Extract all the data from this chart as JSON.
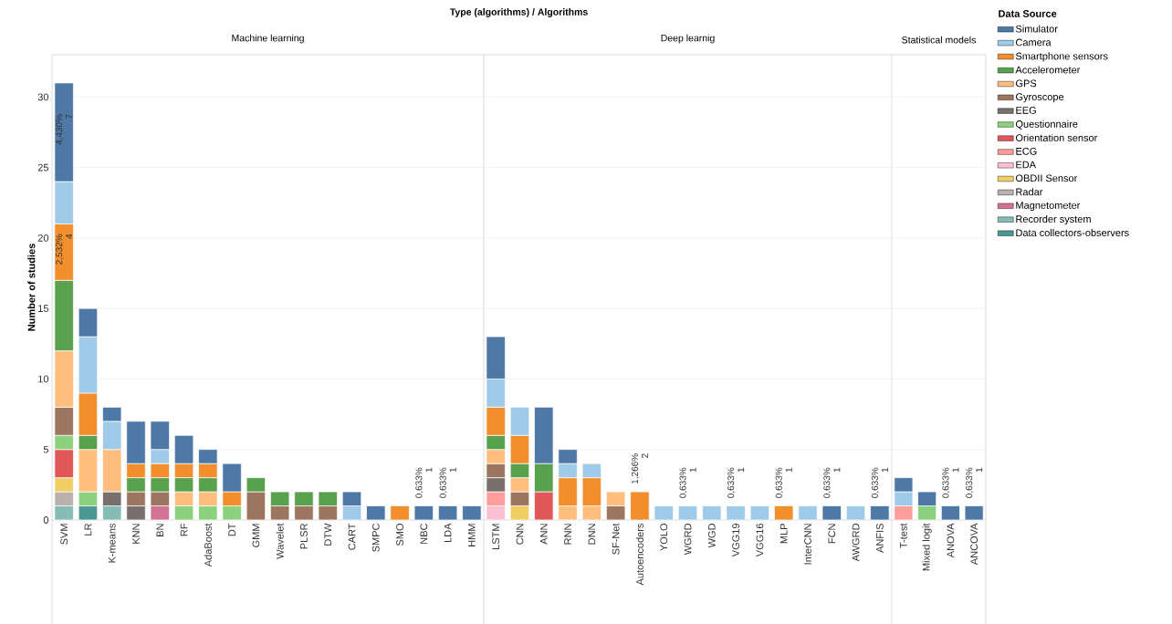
{
  "chart_data": [
    {
      "type": "bar",
      "stacked": true,
      "title": "Machine learning",
      "ylabel": "Number of studies",
      "annotations": [
        "Type (algorithms)  /  Algorithms"
      ],
      "grid": "y",
      "ylim": [
        0,
        33
      ],
      "yticks": [
        0,
        5,
        10,
        15,
        20,
        25,
        30
      ],
      "categories": [
        "SVM",
        "LR",
        "K-means",
        "KNN",
        "BN",
        "RF",
        "AdaBoost",
        "DT",
        "GMM",
        "Wavelet",
        "PLSR",
        "DTW",
        "CART",
        "SMPC",
        "SMO",
        "NBC",
        "LDA",
        "HMM"
      ],
      "series": [
        {
          "color": "#499894",
          "values": [
            null,
            1,
            null,
            null,
            null,
            null,
            null,
            null,
            null,
            null,
            null,
            null,
            null,
            null,
            null,
            null,
            null,
            null
          ]
        },
        {
          "color": "#86bcb6",
          "values": [
            1,
            null,
            1,
            null,
            null,
            null,
            null,
            null,
            null,
            null,
            null,
            null,
            null,
            null,
            null,
            null,
            null,
            null
          ]
        },
        {
          "color": "#d37295",
          "values": [
            null,
            null,
            null,
            null,
            1,
            null,
            null,
            null,
            null,
            null,
            null,
            null,
            null,
            null,
            null,
            null,
            null,
            null
          ]
        },
        {
          "color": "#bab0ac",
          "values": [
            1,
            null,
            null,
            null,
            null,
            null,
            null,
            null,
            null,
            null,
            null,
            null,
            null,
            null,
            null,
            null,
            null,
            null
          ]
        },
        {
          "color": "#f1ce63",
          "values": [
            1,
            null,
            null,
            null,
            null,
            null,
            null,
            null,
            null,
            null,
            null,
            null,
            null,
            null,
            null,
            null,
            null,
            null
          ]
        },
        {
          "color": "#fabfd2",
          "values": [
            null,
            null,
            null,
            null,
            null,
            null,
            null,
            null,
            null,
            null,
            null,
            null,
            null,
            null,
            null,
            null,
            null,
            null
          ]
        },
        {
          "color": "#ff9d9a",
          "values": [
            null,
            null,
            null,
            null,
            null,
            null,
            null,
            null,
            null,
            null,
            null,
            null,
            null,
            null,
            null,
            null,
            null,
            null
          ]
        },
        {
          "color": "#e15759",
          "values": [
            2,
            null,
            null,
            null,
            null,
            null,
            null,
            null,
            null,
            null,
            null,
            null,
            null,
            null,
            null,
            null,
            null,
            null
          ]
        },
        {
          "color": "#8cd17d",
          "values": [
            1,
            1,
            null,
            null,
            null,
            1,
            1,
            1,
            null,
            null,
            null,
            null,
            null,
            null,
            null,
            null,
            null,
            null
          ]
        },
        {
          "color": "#79706e",
          "values": [
            null,
            null,
            1,
            1,
            null,
            null,
            null,
            null,
            null,
            null,
            null,
            null,
            null,
            null,
            null,
            null,
            null,
            null
          ]
        },
        {
          "color": "#9d7660",
          "values": [
            2,
            null,
            null,
            1,
            1,
            null,
            null,
            null,
            2,
            1,
            1,
            1,
            null,
            null,
            null,
            null,
            null,
            null
          ]
        },
        {
          "color": "#ffbe7d",
          "values": [
            4,
            3,
            3,
            null,
            null,
            1,
            1,
            null,
            null,
            null,
            null,
            null,
            null,
            null,
            null,
            null,
            null,
            null
          ]
        },
        {
          "color": "#59a14f",
          "values": [
            5,
            1,
            null,
            1,
            1,
            1,
            1,
            null,
            1,
            1,
            1,
            1,
            null,
            null,
            null,
            null,
            null,
            null
          ]
        },
        {
          "color": "#f28e2b",
          "values": [
            4,
            3,
            null,
            1,
            1,
            1,
            1,
            1,
            null,
            null,
            null,
            null,
            null,
            null,
            1,
            null,
            null,
            null
          ],
          "value_labels": [
            "2,532% 4",
            null,
            null,
            null,
            null,
            null,
            null,
            null,
            null,
            null,
            null,
            null,
            null,
            null,
            null,
            null,
            null,
            null
          ]
        },
        {
          "color": "#a0cbe8",
          "values": [
            3,
            4,
            2,
            null,
            1,
            null,
            null,
            null,
            null,
            null,
            null,
            null,
            1,
            null,
            null,
            null,
            null,
            null
          ]
        },
        {
          "color": "#4e79a7",
          "values": [
            7,
            2,
            1,
            3,
            2,
            2,
            1,
            2,
            null,
            null,
            null,
            null,
            1,
            1,
            null,
            1,
            1,
            1
          ],
          "value_labels": [
            "4,430% 7",
            null,
            null,
            null,
            null,
            null,
            null,
            null,
            null,
            null,
            null,
            null,
            null,
            null,
            null,
            "0,633% 1",
            "0,633% 1",
            null
          ]
        }
      ]
    },
    {
      "type": "bar",
      "stacked": true,
      "title": "Deep learnig",
      "grid": "y",
      "tick_labels": "x",
      "ylim": [
        0,
        33
      ],
      "yticks": [
        0,
        5,
        10,
        15,
        20,
        25,
        30
      ],
      "categories": [
        "LSTM",
        "CNN",
        "ANN",
        "RNN",
        "DNN",
        "SF-Net",
        "Autoencoders",
        "YOLO",
        "WGRD",
        "WGD",
        "VGG19",
        "VGG16",
        "MLP",
        "InterCNN",
        "FCN",
        "AWGRD",
        "ANFIS"
      ],
      "series": [
        {
          "color": "#499894",
          "values": [
            null,
            null,
            null,
            null,
            null,
            null,
            null,
            null,
            null,
            null,
            null,
            null,
            null,
            null,
            null,
            null,
            null
          ]
        },
        {
          "color": "#86bcb6",
          "values": [
            null,
            null,
            null,
            null,
            null,
            null,
            null,
            null,
            null,
            null,
            null,
            null,
            null,
            null,
            null,
            null,
            null
          ]
        },
        {
          "color": "#d37295",
          "values": [
            null,
            null,
            null,
            null,
            null,
            null,
            null,
            null,
            null,
            null,
            null,
            null,
            null,
            null,
            null,
            null,
            null
          ]
        },
        {
          "color": "#bab0ac",
          "values": [
            null,
            null,
            null,
            null,
            null,
            null,
            null,
            null,
            null,
            null,
            null,
            null,
            null,
            null,
            null,
            null,
            null
          ]
        },
        {
          "color": "#f1ce63",
          "values": [
            null,
            1,
            null,
            null,
            null,
            null,
            null,
            null,
            null,
            null,
            null,
            null,
            null,
            null,
            null,
            null,
            null
          ]
        },
        {
          "color": "#fabfd2",
          "values": [
            1,
            null,
            null,
            null,
            null,
            null,
            null,
            null,
            null,
            null,
            null,
            null,
            null,
            null,
            null,
            null,
            null
          ]
        },
        {
          "color": "#ff9d9a",
          "values": [
            1,
            null,
            null,
            null,
            null,
            null,
            null,
            null,
            null,
            null,
            null,
            null,
            null,
            null,
            null,
            null,
            null
          ]
        },
        {
          "color": "#e15759",
          "values": [
            null,
            null,
            2,
            null,
            null,
            null,
            null,
            null,
            null,
            null,
            null,
            null,
            null,
            null,
            null,
            null,
            null
          ]
        },
        {
          "color": "#8cd17d",
          "values": [
            null,
            null,
            null,
            null,
            null,
            null,
            null,
            null,
            null,
            null,
            null,
            null,
            null,
            null,
            null,
            null,
            null
          ]
        },
        {
          "color": "#79706e",
          "values": [
            1,
            null,
            null,
            null,
            null,
            null,
            null,
            null,
            null,
            null,
            null,
            null,
            null,
            null,
            null,
            null,
            null
          ]
        },
        {
          "color": "#9d7660",
          "values": [
            1,
            1,
            null,
            null,
            null,
            1,
            null,
            null,
            null,
            null,
            null,
            null,
            null,
            null,
            null,
            null,
            null
          ]
        },
        {
          "color": "#ffbe7d",
          "values": [
            1,
            1,
            null,
            1,
            1,
            1,
            null,
            null,
            null,
            null,
            null,
            null,
            null,
            null,
            null,
            null,
            null
          ]
        },
        {
          "color": "#59a14f",
          "values": [
            1,
            1,
            2,
            null,
            null,
            null,
            null,
            null,
            null,
            null,
            null,
            null,
            null,
            null,
            null,
            null,
            null
          ]
        },
        {
          "color": "#f28e2b",
          "values": [
            2,
            2,
            null,
            2,
            2,
            null,
            2,
            null,
            null,
            null,
            null,
            null,
            1,
            null,
            null,
            null,
            null
          ],
          "value_labels": [
            null,
            null,
            null,
            null,
            null,
            null,
            "1,266% 2",
            null,
            null,
            null,
            null,
            null,
            "0,633% 1",
            null,
            null,
            null,
            null
          ]
        },
        {
          "color": "#a0cbe8",
          "values": [
            2,
            2,
            null,
            1,
            1,
            null,
            null,
            1,
            1,
            1,
            1,
            1,
            null,
            1,
            null,
            1,
            null
          ],
          "value_labels": [
            null,
            null,
            null,
            null,
            null,
            null,
            null,
            null,
            "0,633% 1",
            null,
            "0,633% 1",
            null,
            null,
            null,
            null,
            null,
            null
          ]
        },
        {
          "color": "#4e79a7",
          "values": [
            3,
            null,
            4,
            1,
            null,
            null,
            null,
            null,
            null,
            null,
            null,
            null,
            null,
            null,
            1,
            null,
            1
          ],
          "value_labels": [
            null,
            null,
            null,
            null,
            null,
            null,
            null,
            null,
            null,
            null,
            null,
            null,
            null,
            null,
            "0,633% 1",
            null,
            "0,633% 1"
          ]
        }
      ]
    },
    {
      "type": "bar",
      "stacked": true,
      "title": "Statistical models",
      "grid": "y",
      "tick_labels": "x",
      "legend": "right",
      "legend_title": "Data Source",
      "ylim": [
        0,
        33
      ],
      "yticks": [
        0,
        5,
        10,
        15,
        20,
        25,
        30
      ],
      "categories": [
        "T-test",
        "Mixed logit",
        "ANOVA",
        "ANCOVA"
      ],
      "series": [
        {
          "name": "Data collectors-observers",
          "color": "#499894",
          "values": [
            null,
            null,
            null,
            null
          ]
        },
        {
          "name": "Recorder system",
          "color": "#86bcb6",
          "values": [
            null,
            null,
            null,
            null
          ]
        },
        {
          "name": "Magnetometer",
          "color": "#d37295",
          "values": [
            null,
            null,
            null,
            null
          ]
        },
        {
          "name": "Radar",
          "color": "#bab0ac",
          "values": [
            null,
            null,
            null,
            null
          ]
        },
        {
          "name": "OBDII Sensor",
          "color": "#f1ce63",
          "values": [
            null,
            null,
            null,
            null
          ]
        },
        {
          "name": "EDA",
          "color": "#fabfd2",
          "values": [
            null,
            null,
            null,
            null
          ]
        },
        {
          "name": "ECG",
          "color": "#ff9d9a",
          "values": [
            1,
            null,
            null,
            null
          ]
        },
        {
          "name": "Orientation sensor",
          "color": "#e15759",
          "values": [
            null,
            null,
            null,
            null
          ]
        },
        {
          "name": "Questionnaire",
          "color": "#8cd17d",
          "values": [
            null,
            1,
            null,
            null
          ]
        },
        {
          "name": "EEG",
          "color": "#79706e",
          "values": [
            null,
            null,
            null,
            null
          ]
        },
        {
          "name": "Gyroscope",
          "color": "#9d7660",
          "values": [
            null,
            null,
            null,
            null
          ]
        },
        {
          "name": "GPS",
          "color": "#ffbe7d",
          "values": [
            null,
            null,
            null,
            null
          ]
        },
        {
          "name": "Accelerometer",
          "color": "#59a14f",
          "values": [
            null,
            null,
            null,
            null
          ]
        },
        {
          "name": "Smartphone sensors",
          "color": "#f28e2b",
          "values": [
            null,
            null,
            null,
            null
          ]
        },
        {
          "name": "Camera",
          "color": "#a0cbe8",
          "values": [
            1,
            null,
            null,
            null
          ]
        },
        {
          "name": "Simulator",
          "color": "#4e79a7",
          "values": [
            1,
            1,
            1,
            1
          ],
          "value_labels": [
            null,
            null,
            "0,633% 1",
            "0,633% 1"
          ]
        }
      ]
    }
  ]
}
